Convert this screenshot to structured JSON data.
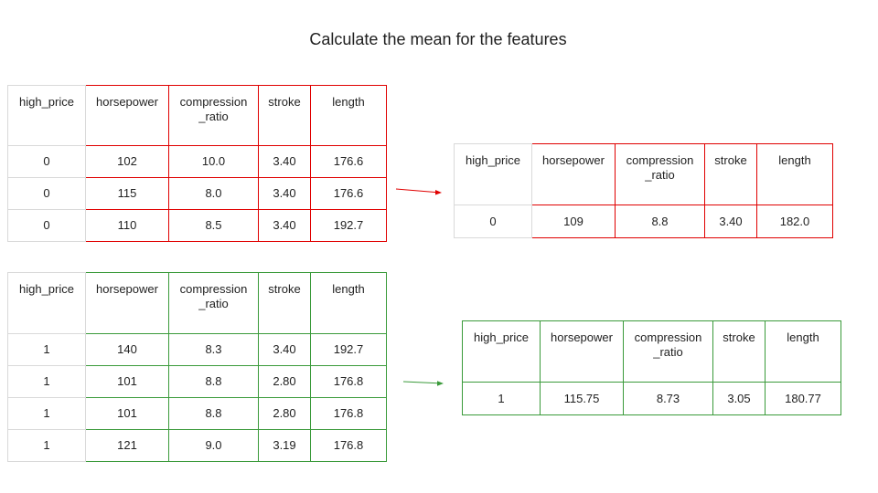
{
  "title": "Calculate the mean for the features",
  "colors": {
    "red": "#e00000",
    "green": "#3a9a3a",
    "grid": "#d9d9d9"
  },
  "red_table": {
    "headers": [
      "high_price",
      "horsepower",
      "compression\n_ratio",
      "stroke",
      "length"
    ],
    "rows": [
      [
        "0",
        "102",
        "10.0",
        "3.40",
        "176.6"
      ],
      [
        "0",
        "115",
        "8.0",
        "3.40",
        "176.6"
      ],
      [
        "0",
        "110",
        "8.5",
        "3.40",
        "192.7"
      ]
    ]
  },
  "red_mean_table": {
    "headers": [
      "high_price",
      "horsepower",
      "compression\n_ratio",
      "stroke",
      "length"
    ],
    "rows": [
      [
        "0",
        "109",
        "8.8",
        "3.40",
        "182.0"
      ]
    ]
  },
  "green_table": {
    "headers": [
      "high_price",
      "horsepower",
      "compression\n_ratio",
      "stroke",
      "length"
    ],
    "rows": [
      [
        "1",
        "140",
        "8.3",
        "3.40",
        "192.7"
      ],
      [
        "1",
        "101",
        "8.8",
        "2.80",
        "176.8"
      ],
      [
        "1",
        "101",
        "8.8",
        "2.80",
        "176.8"
      ],
      [
        "1",
        "121",
        "9.0",
        "3.19",
        "176.8"
      ]
    ]
  },
  "green_mean_table": {
    "headers": [
      "high_price",
      "horsepower",
      "compression\n_ratio",
      "stroke",
      "length"
    ],
    "rows": [
      [
        "1",
        "115.75",
        "8.73",
        "3.05",
        "180.77"
      ]
    ]
  }
}
